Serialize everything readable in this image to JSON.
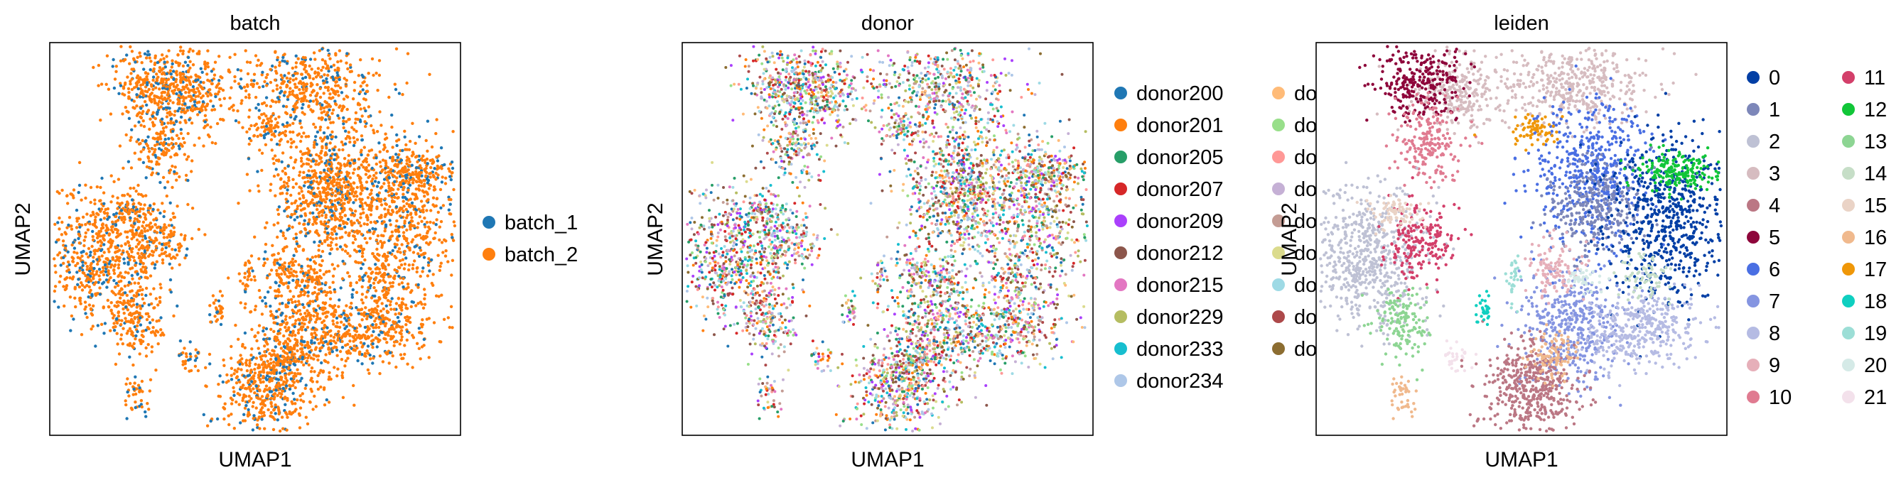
{
  "chart_data": [
    {
      "type": "scatter",
      "title": "batch",
      "xlabel": "UMAP1",
      "ylabel": "UMAP2",
      "xlim": [
        0,
        1
      ],
      "ylim": [
        0,
        1
      ],
      "grid": false,
      "legend_placement": "right",
      "point_palette": [
        "#1f77b4",
        "#ff7f0e"
      ],
      "series": [
        {
          "name": "batch_1",
          "color": "#1f77b4"
        },
        {
          "name": "batch_2",
          "color": "#ff7f0e"
        }
      ]
    },
    {
      "type": "scatter",
      "title": "donor",
      "xlabel": "UMAP1",
      "ylabel": "UMAP2",
      "xlim": [
        0,
        1
      ],
      "ylim": [
        0,
        1
      ],
      "grid": false,
      "legend_placement": "right",
      "point_palette": [
        "#1f77b4",
        "#ff7f0e",
        "#279e68",
        "#d62728",
        "#aa40fc",
        "#8c564b",
        "#e377c2",
        "#b5bd61",
        "#17becf",
        "#aec7e8",
        "#ffbb78",
        "#98df8a",
        "#ff9896",
        "#c5b0d5",
        "#c49c94",
        "#dbdb8d",
        "#9edae5",
        "#ad494a",
        "#8c6d31"
      ],
      "series": [
        {
          "name": "donor200",
          "color": "#1f77b4"
        },
        {
          "name": "donor201",
          "color": "#ff7f0e"
        },
        {
          "name": "donor205",
          "color": "#279e68"
        },
        {
          "name": "donor207",
          "color": "#d62728"
        },
        {
          "name": "donor209",
          "color": "#aa40fc"
        },
        {
          "name": "donor212",
          "color": "#8c564b"
        },
        {
          "name": "donor215",
          "color": "#e377c2"
        },
        {
          "name": "donor229",
          "color": "#b5bd61"
        },
        {
          "name": "donor233",
          "color": "#17becf"
        },
        {
          "name": "donor234",
          "color": "#aec7e8"
        },
        {
          "name": "do",
          "color": "#ffbb78"
        },
        {
          "name": "do",
          "color": "#98df8a"
        },
        {
          "name": "do",
          "color": "#ff9896"
        },
        {
          "name": "do",
          "color": "#c5b0d5"
        },
        {
          "name": "do",
          "color": "#c49c94"
        },
        {
          "name": "do",
          "color": "#dbdb8d"
        },
        {
          "name": "do",
          "color": "#9edae5"
        },
        {
          "name": "do",
          "color": "#ad494a"
        },
        {
          "name": "do",
          "color": "#8c6d31"
        }
      ]
    },
    {
      "type": "scatter",
      "title": "leiden",
      "xlabel": "UMAP1",
      "ylabel": "UMAP2",
      "xlim": [
        0,
        1
      ],
      "ylim": [
        0,
        1
      ],
      "grid": false,
      "legend_placement": "right",
      "series": [
        {
          "name": "0",
          "color": "#023fa5"
        },
        {
          "name": "1",
          "color": "#7d87b9"
        },
        {
          "name": "2",
          "color": "#bec1d4"
        },
        {
          "name": "3",
          "color": "#d6bcc0"
        },
        {
          "name": "4",
          "color": "#bb7784"
        },
        {
          "name": "5",
          "color": "#8e063b"
        },
        {
          "name": "6",
          "color": "#4a6fe3"
        },
        {
          "name": "7",
          "color": "#8595e1"
        },
        {
          "name": "8",
          "color": "#b5bbe3"
        },
        {
          "name": "9",
          "color": "#e6afb9"
        },
        {
          "name": "10",
          "color": "#e07b91"
        },
        {
          "name": "11",
          "color": "#d33f6a"
        },
        {
          "name": "12",
          "color": "#11c638"
        },
        {
          "name": "13",
          "color": "#8dd593"
        },
        {
          "name": "14",
          "color": "#c6dec7"
        },
        {
          "name": "15",
          "color": "#ead3c6"
        },
        {
          "name": "16",
          "color": "#f0b98d"
        },
        {
          "name": "17",
          "color": "#ef9708"
        },
        {
          "name": "18",
          "color": "#0fcfc0"
        },
        {
          "name": "19",
          "color": "#9cded6"
        },
        {
          "name": "20",
          "color": "#d5eae7"
        },
        {
          "name": "21",
          "color": "#f3e1eb"
        }
      ]
    }
  ]
}
